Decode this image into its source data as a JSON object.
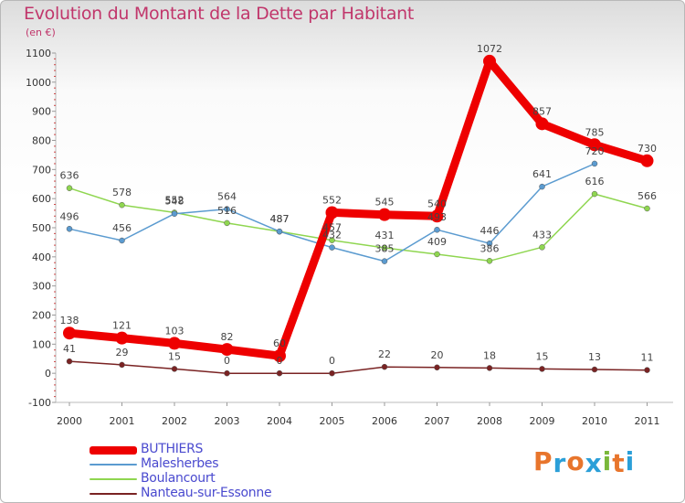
{
  "header": {
    "title": "Evolution du Montant de la Dette par Habitant",
    "unit": "(en €)"
  },
  "logo": {
    "text": "Proxiti",
    "letters": [
      "P",
      "r",
      "o",
      "x",
      "i",
      "t",
      "i"
    ],
    "colors": [
      "#e8752c",
      "#2b9fd8",
      "#e8752c",
      "#2b9fd8",
      "#7ab83a",
      "#e8752c",
      "#2b9fd8"
    ]
  },
  "chart_data": {
    "type": "line",
    "title": "Evolution du Montant de la Dette par Habitant",
    "ylabel": "(en €)",
    "xlabel": "",
    "x": [
      "2000",
      "2001",
      "2002",
      "2003",
      "2004",
      "2005",
      "2006",
      "2007",
      "2008",
      "2009",
      "2010",
      "2011"
    ],
    "ylim": [
      -100,
      1100
    ],
    "yticks": [
      -100,
      0,
      100,
      200,
      300,
      400,
      500,
      600,
      700,
      800,
      900,
      1000,
      1100
    ],
    "grid": false,
    "legend_position": "bottom-left",
    "series": [
      {
        "name": "BUTHIERS",
        "color": "#ee0000",
        "values": [
          138,
          121,
          103,
          82,
          60,
          552,
          545,
          540,
          1072,
          857,
          785,
          730
        ],
        "labels": [
          "138",
          "121",
          "103",
          "82",
          "60",
          "552",
          "545",
          "540",
          "1072",
          "857",
          "785",
          "730"
        ]
      },
      {
        "name": "Malesherbes",
        "color": "#5b9bd0",
        "values": [
          496,
          456,
          548,
          564,
          487,
          432,
          385,
          493,
          446,
          641,
          720,
          null
        ],
        "labels": [
          "496",
          "456",
          "548",
          "564",
          "487",
          "432",
          "385",
          "493",
          "446",
          "641",
          "720",
          ""
        ]
      },
      {
        "name": "Boulancourt",
        "color": "#8fd650",
        "values": [
          636,
          578,
          552,
          516,
          487,
          457,
          431,
          409,
          386,
          433,
          616,
          566
        ],
        "labels": [
          "636",
          "578",
          "552",
          "516",
          "487",
          "457",
          "431",
          "409",
          "386",
          "433",
          "616",
          "566"
        ]
      },
      {
        "name": "Nanteau-sur-Essonne",
        "color": "#7a2323",
        "values": [
          41,
          29,
          15,
          0,
          0,
          0,
          22,
          20,
          18,
          15,
          13,
          11
        ],
        "labels": [
          "41",
          "29",
          "15",
          "0",
          "0",
          "0",
          "22",
          "20",
          "18",
          "15",
          "13",
          "11"
        ]
      }
    ]
  }
}
